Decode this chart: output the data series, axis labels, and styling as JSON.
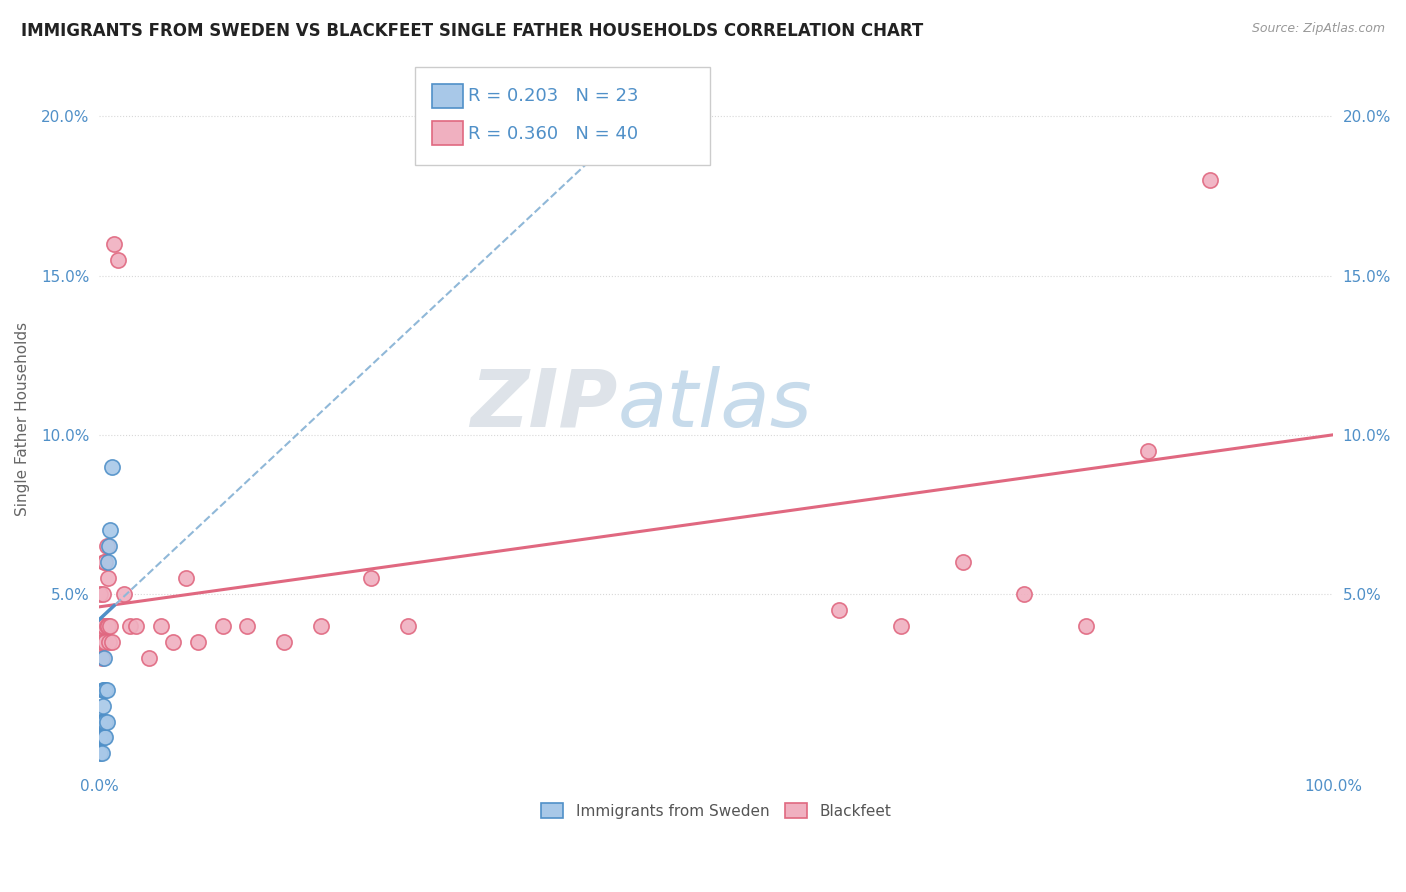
{
  "title": "IMMIGRANTS FROM SWEDEN VS BLACKFEET SINGLE FATHER HOUSEHOLDS CORRELATION CHART",
  "source": "Source: ZipAtlas.com",
  "ylabel": "Single Father Households",
  "sweden_color": "#a8c8e8",
  "blackfeet_color": "#f0b0c0",
  "sweden_line_color": "#5090c8",
  "blackfeet_line_color": "#e06880",
  "dashed_line_color": "#90b8d8",
  "R_sweden": 0.203,
  "N_sweden": 23,
  "R_blackfeet": 0.36,
  "N_blackfeet": 40,
  "sweden_scatter_x": [
    0.001,
    0.001,
    0.001,
    0.002,
    0.002,
    0.002,
    0.003,
    0.003,
    0.003,
    0.003,
    0.004,
    0.004,
    0.004,
    0.004,
    0.005,
    0.005,
    0.005,
    0.006,
    0.006,
    0.007,
    0.008,
    0.009,
    0.01
  ],
  "sweden_scatter_y": [
    0.0,
    0.005,
    0.01,
    0.0,
    0.005,
    0.01,
    0.005,
    0.01,
    0.015,
    0.02,
    0.005,
    0.01,
    0.02,
    0.03,
    0.005,
    0.01,
    0.02,
    0.01,
    0.02,
    0.06,
    0.065,
    0.07,
    0.09
  ],
  "blackfeet_scatter_x": [
    0.001,
    0.001,
    0.002,
    0.002,
    0.003,
    0.003,
    0.004,
    0.004,
    0.005,
    0.005,
    0.006,
    0.006,
    0.007,
    0.007,
    0.008,
    0.009,
    0.01,
    0.012,
    0.015,
    0.02,
    0.025,
    0.03,
    0.04,
    0.05,
    0.06,
    0.07,
    0.08,
    0.1,
    0.12,
    0.15,
    0.18,
    0.22,
    0.25,
    0.6,
    0.65,
    0.7,
    0.75,
    0.8,
    0.85,
    0.9
  ],
  "blackfeet_scatter_y": [
    0.035,
    0.05,
    0.03,
    0.04,
    0.035,
    0.05,
    0.04,
    0.06,
    0.035,
    0.06,
    0.04,
    0.065,
    0.04,
    0.055,
    0.035,
    0.04,
    0.035,
    0.16,
    0.155,
    0.05,
    0.04,
    0.04,
    0.03,
    0.04,
    0.035,
    0.055,
    0.035,
    0.04,
    0.04,
    0.035,
    0.04,
    0.055,
    0.04,
    0.045,
    0.04,
    0.06,
    0.05,
    0.04,
    0.095,
    0.18
  ],
  "watermark_zip": "ZIP",
  "watermark_atlas": "atlas",
  "background_color": "#ffffff",
  "grid_color": "#d8d8d8",
  "tick_color": "#5090c8",
  "title_color": "#222222",
  "xlim": [
    0.0,
    1.0
  ],
  "ylim": [
    -0.005,
    0.215
  ],
  "yticks": [
    0.0,
    0.05,
    0.1,
    0.15,
    0.2
  ],
  "ytick_labels": [
    "",
    "5.0%",
    "10.0%",
    "15.0%",
    "20.0%"
  ]
}
